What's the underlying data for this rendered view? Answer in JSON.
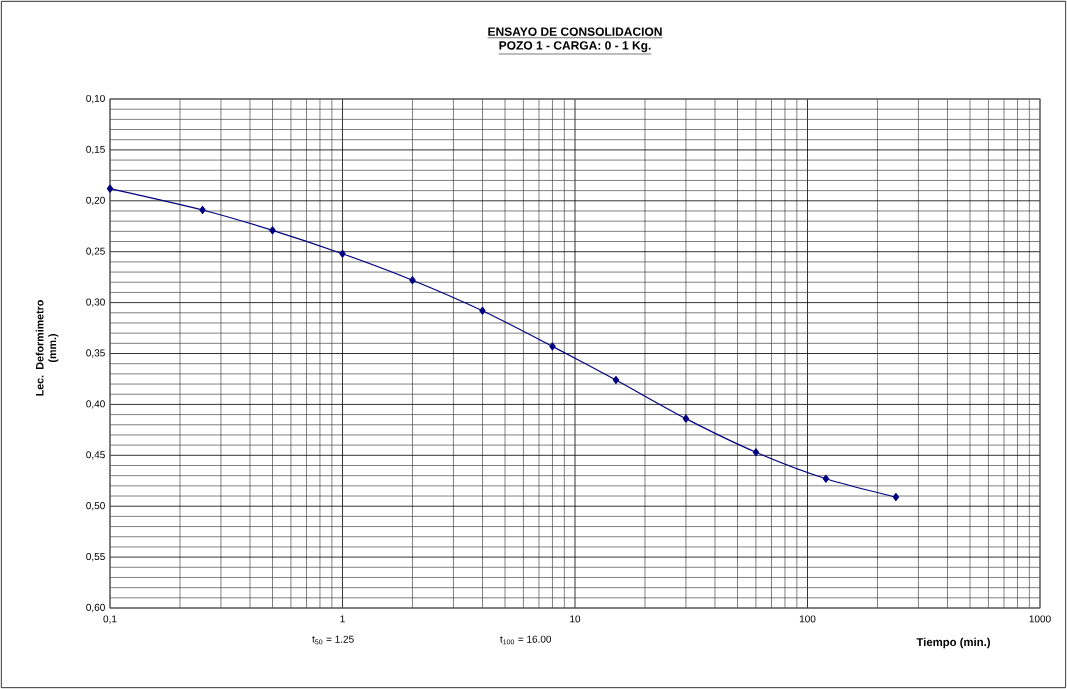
{
  "chart_data": {
    "type": "line",
    "title": "ENSAYO DE CONSOLIDACION",
    "subtitle": "POZO 1 - CARGA: 0 - 1 Kg.",
    "xlabel": "Tiempo (min.)",
    "ylabel": "Lec. Deformimetro (mm.)",
    "x": [
      0.1,
      0.25,
      0.5,
      1,
      2,
      4,
      8,
      15,
      30,
      60,
      120,
      240
    ],
    "series": [
      {
        "color": "#000080",
        "values": [
          0.188,
          0.209,
          0.229,
          0.252,
          0.278,
          0.308,
          0.343,
          0.376,
          0.414,
          0.447,
          0.473,
          0.491
        ]
      }
    ],
    "log": "x",
    "grid": true,
    "marker": "diamond",
    "line_style": "solid",
    "xlim": [
      0.1,
      1000
    ],
    "xticks": [
      {
        "value": 0.1,
        "label": "0,1"
      },
      1,
      10,
      100,
      1000
    ],
    "ylim": [
      0.6,
      0.1
    ],
    "yticks": [
      {
        "value": 0.1,
        "label": "0,10"
      },
      {
        "value": 0.15,
        "label": "0,15"
      },
      {
        "value": 0.2,
        "label": "0,20"
      },
      {
        "value": 0.25,
        "label": "0,25"
      },
      {
        "value": 0.3,
        "label": "0,30"
      },
      {
        "value": 0.35,
        "label": "0,35"
      },
      {
        "value": 0.4,
        "label": "0,40"
      },
      {
        "value": 0.45,
        "label": "0,45"
      },
      {
        "value": 0.5,
        "label": "0,50"
      },
      {
        "value": 0.55,
        "label": "0,55"
      },
      {
        "value": 0.6,
        "label": "0,60"
      }
    ],
    "annotations": [
      "t$_{50}$ = 1.25",
      "t$_{100}$ = 16.00"
    ]
  }
}
